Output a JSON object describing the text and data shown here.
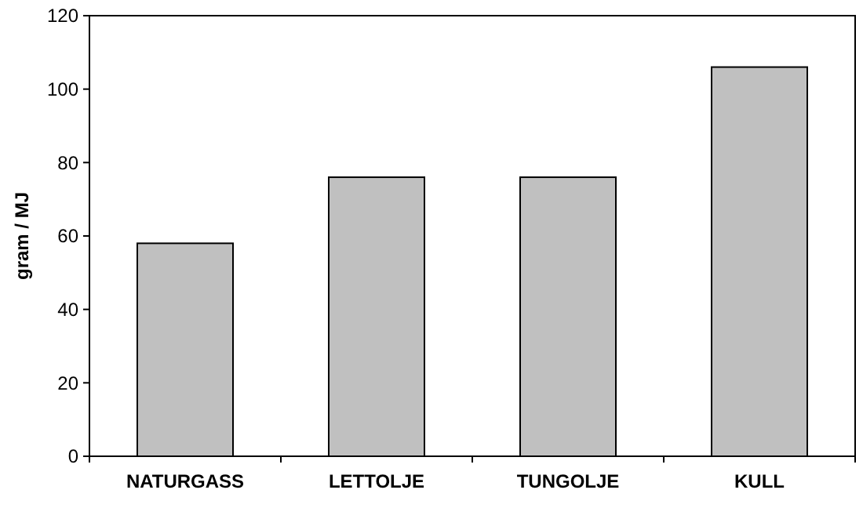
{
  "chart_data": {
    "type": "bar",
    "ylabel": "gram / MJ",
    "categories": [
      "NATURGASS",
      "LETTOLJE",
      "TUNGOLJE",
      "KULL"
    ],
    "values": [
      58,
      76,
      76,
      106
    ],
    "color": "#c0c0c0",
    "ylim": [
      0,
      120
    ],
    "yticks": [
      0,
      20,
      40,
      60,
      80,
      100,
      120
    ],
    "grid": false
  }
}
